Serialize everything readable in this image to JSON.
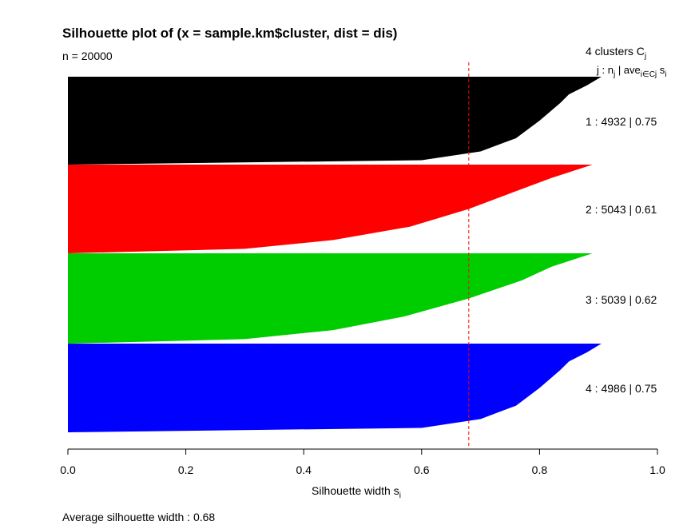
{
  "chart_data": {
    "type": "silhouette",
    "title": "Silhouette plot of (x = sample.km$cluster, dist = dis)",
    "subtitle": "n = 20000",
    "header": {
      "line1": "4  clusters  C",
      "line1_sub": "j",
      "line2_j": "j :  n",
      "line2_j_sub": "j",
      "line2_mid": " | ave",
      "line2_mid_sub": "i∈Cj",
      "line2_s": "  s",
      "line2_s_sub": "i"
    },
    "xlabel": "Silhouette width s",
    "xlabel_sub": "i",
    "xlim": [
      0,
      1
    ],
    "xticks": [
      "0.0",
      "0.2",
      "0.4",
      "0.6",
      "0.8",
      "1.0"
    ],
    "average_label": "Average silhouette width :  0.68",
    "average_silhouette": 0.68,
    "clusters": [
      {
        "id": 1,
        "size": 4932,
        "avg": 0.75,
        "label": "1 :   4932  |  0.75",
        "color": "#000000",
        "profile": [
          [
            0.0,
            0.905
          ],
          [
            0.1,
            0.88
          ],
          [
            0.2,
            0.85
          ],
          [
            0.3,
            0.835
          ],
          [
            0.5,
            0.8
          ],
          [
            0.7,
            0.76
          ],
          [
            0.85,
            0.7
          ],
          [
            0.95,
            0.6
          ],
          [
            1.0,
            0.0
          ]
        ]
      },
      {
        "id": 2,
        "size": 5043,
        "avg": 0.61,
        "label": "2 :   5043  |  0.61",
        "color": "#ff0000",
        "profile": [
          [
            0.0,
            0.89
          ],
          [
            0.15,
            0.82
          ],
          [
            0.3,
            0.76
          ],
          [
            0.5,
            0.68
          ],
          [
            0.7,
            0.58
          ],
          [
            0.85,
            0.45
          ],
          [
            0.95,
            0.3
          ],
          [
            1.0,
            0.0
          ]
        ]
      },
      {
        "id": 3,
        "size": 5039,
        "avg": 0.62,
        "label": "3 :   5039  |  0.62",
        "color": "#00cd00",
        "profile": [
          [
            0.0,
            0.89
          ],
          [
            0.15,
            0.82
          ],
          [
            0.3,
            0.77
          ],
          [
            0.5,
            0.68
          ],
          [
            0.7,
            0.57
          ],
          [
            0.85,
            0.45
          ],
          [
            0.95,
            0.3
          ],
          [
            1.0,
            0.0
          ]
        ]
      },
      {
        "id": 4,
        "size": 4986,
        "avg": 0.75,
        "label": "4 :   4986  |  0.75",
        "color": "#0000ff",
        "profile": [
          [
            0.0,
            0.905
          ],
          [
            0.1,
            0.88
          ],
          [
            0.2,
            0.85
          ],
          [
            0.3,
            0.835
          ],
          [
            0.5,
            0.8
          ],
          [
            0.7,
            0.76
          ],
          [
            0.85,
            0.7
          ],
          [
            0.95,
            0.6
          ],
          [
            1.0,
            0.0
          ]
        ]
      }
    ]
  }
}
